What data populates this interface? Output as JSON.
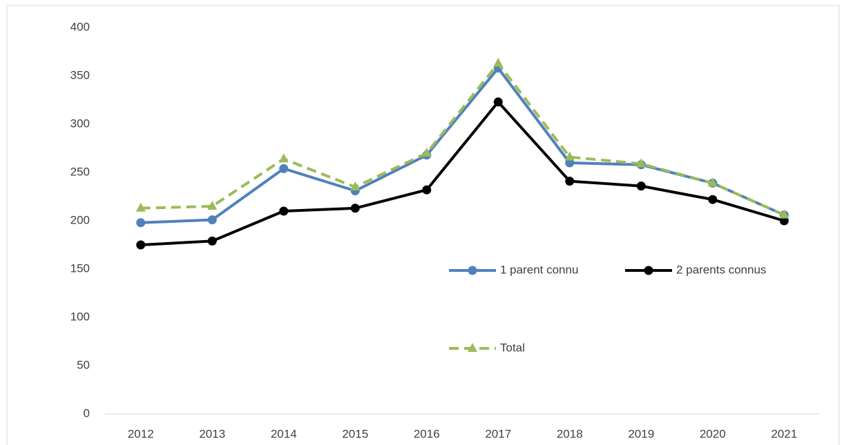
{
  "chart_data": {
    "type": "line",
    "categories": [
      "2012",
      "2013",
      "2014",
      "2015",
      "2016",
      "2017",
      "2018",
      "2019",
      "2020",
      "2021"
    ],
    "series": [
      {
        "name": "1 parent connu",
        "color": "#4f81bd",
        "marker": "circle",
        "dash": false,
        "values": [
          198,
          201,
          254,
          231,
          268,
          358,
          260,
          258,
          239,
          206
        ]
      },
      {
        "name": "2 parents connus",
        "color": "#000000",
        "marker": "circle",
        "dash": false,
        "values": [
          175,
          179,
          210,
          213,
          232,
          323,
          241,
          236,
          222,
          200
        ]
      },
      {
        "name": "Total",
        "color": "#9bbb59",
        "marker": "triangle",
        "dash": true,
        "values": [
          213,
          215,
          264,
          235,
          270,
          363,
          266,
          259,
          239,
          206
        ]
      }
    ],
    "ylim": [
      0,
      400
    ],
    "yticks": [
      0,
      50,
      100,
      150,
      200,
      250,
      300,
      350,
      400
    ],
    "grid": false,
    "legend": "center-right"
  }
}
